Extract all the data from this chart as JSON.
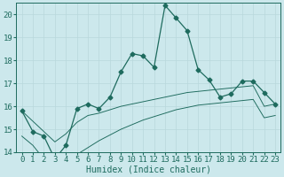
{
  "xlabel": "Humidex (Indice chaleur)",
  "background_color": "#cce8ec",
  "grid_color": "#b8d8dc",
  "line_color": "#1e6b5e",
  "x_data": [
    0,
    1,
    2,
    3,
    4,
    5,
    6,
    7,
    8,
    9,
    10,
    11,
    12,
    13,
    14,
    15,
    16,
    17,
    18,
    19,
    20,
    21,
    22,
    23
  ],
  "y_main": [
    15.8,
    14.9,
    14.7,
    13.7,
    14.3,
    15.9,
    16.1,
    15.9,
    16.4,
    17.5,
    18.3,
    18.2,
    17.7,
    20.4,
    19.85,
    19.3,
    17.6,
    17.15,
    16.4,
    16.55,
    17.1,
    17.1,
    16.6,
    16.1
  ],
  "y_mid": [
    15.8,
    15.35,
    14.9,
    14.45,
    14.8,
    15.3,
    15.6,
    15.7,
    15.85,
    16.0,
    16.1,
    16.2,
    16.3,
    16.4,
    16.5,
    16.6,
    16.65,
    16.7,
    16.75,
    16.8,
    16.85,
    16.9,
    16.0,
    16.1
  ],
  "y_low": [
    14.7,
    14.3,
    13.7,
    13.3,
    13.6,
    13.9,
    14.2,
    14.5,
    14.75,
    15.0,
    15.2,
    15.4,
    15.55,
    15.7,
    15.85,
    15.95,
    16.05,
    16.1,
    16.15,
    16.2,
    16.25,
    16.3,
    15.5,
    15.6
  ],
  "ylim": [
    14,
    20.5
  ],
  "yticks": [
    14,
    15,
    16,
    17,
    18,
    19,
    20
  ],
  "xlim": [
    -0.5,
    23.5
  ],
  "xticks": [
    0,
    1,
    2,
    3,
    4,
    5,
    6,
    7,
    8,
    9,
    10,
    11,
    12,
    13,
    14,
    15,
    16,
    17,
    18,
    19,
    20,
    21,
    22,
    23
  ],
  "font_size": 6.5,
  "marker_size": 2.5,
  "line_width": 0.9
}
